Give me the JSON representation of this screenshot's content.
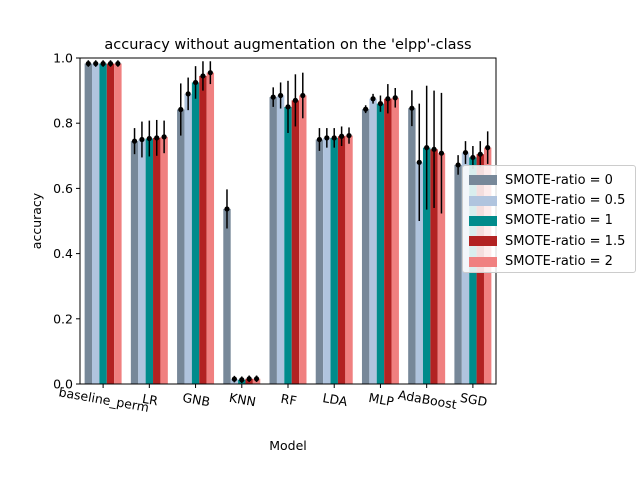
{
  "chart_data": {
    "type": "bar",
    "title": "accuracy without augmentation on the 'elpp'-class",
    "xlabel": "Model",
    "ylabel": "accuracy",
    "ylim": [
      0,
      1
    ],
    "yticks": [
      "0.0",
      "0.2",
      "0.4",
      "0.6",
      "0.8",
      "1.0"
    ],
    "grid": false,
    "legend_position": "right",
    "categories": [
      "baseline_perm",
      "LR",
      "GNB",
      "KNN",
      "RF",
      "LDA",
      "MLP",
      "AdaBoost",
      "SGD"
    ],
    "series": [
      {
        "name": "SMOTE-ratio = 0",
        "color": "#778899",
        "values": [
          0.983,
          0.745,
          0.842,
          0.537,
          0.88,
          0.75,
          0.843,
          0.846,
          0.672
        ],
        "errors": [
          0.01,
          0.04,
          0.08,
          0.06,
          0.03,
          0.035,
          0.012,
          0.055,
          0.03
        ]
      },
      {
        "name": "SMOTE-ratio = 0.5",
        "color": "#b0c4de",
        "values": [
          0.983,
          0.75,
          0.89,
          0.015,
          0.885,
          0.755,
          0.875,
          0.68,
          0.71
        ],
        "errors": [
          0.01,
          0.055,
          0.05,
          0.01,
          0.04,
          0.03,
          0.015,
          0.18,
          0.035
        ]
      },
      {
        "name": "SMOTE-ratio = 1",
        "color": "#008b8b",
        "values": [
          0.983,
          0.753,
          0.925,
          0.013,
          0.85,
          0.755,
          0.86,
          0.725,
          0.695
        ],
        "errors": [
          0.01,
          0.055,
          0.05,
          0.01,
          0.08,
          0.03,
          0.025,
          0.19,
          0.035
        ]
      },
      {
        "name": "SMOTE-ratio = 1.5",
        "color": "#b22222",
        "values": [
          0.983,
          0.755,
          0.945,
          0.016,
          0.87,
          0.76,
          0.875,
          0.72,
          0.705
        ],
        "errors": [
          0.01,
          0.055,
          0.045,
          0.01,
          0.08,
          0.03,
          0.045,
          0.18,
          0.04
        ]
      },
      {
        "name": "SMOTE-ratio = 2",
        "color": "#f08080",
        "values": [
          0.983,
          0.758,
          0.955,
          0.016,
          0.885,
          0.762,
          0.878,
          0.708,
          0.725
        ],
        "errors": [
          0.01,
          0.05,
          0.035,
          0.01,
          0.07,
          0.025,
          0.03,
          0.185,
          0.05
        ]
      }
    ]
  }
}
